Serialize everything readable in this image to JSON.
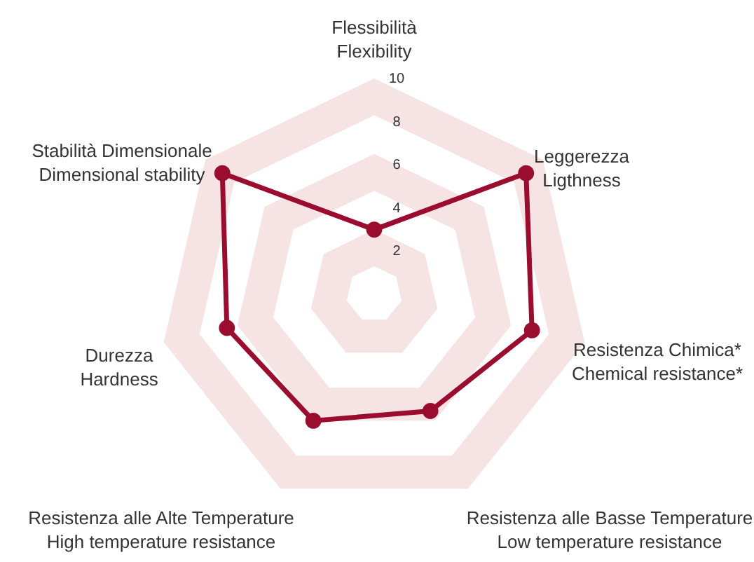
{
  "chart_data": {
    "type": "radar",
    "categories": [
      "Flessibilità\nFlexibility",
      "Leggerezza\nLigthness",
      "Resistenza Chimica*\nChemical resistance*",
      "Resistenza alle Basse Temperature\nLow temperature resistance",
      "Resistenza alle Alte Temperature\nHigh temperature resistance",
      "Durezza\nHardness",
      "Stabilità Dimensionale\nDimensional stability"
    ],
    "series": [
      {
        "color": "#9b0d2e",
        "values": [
          3,
          9,
          7.5,
          6,
          6.5,
          7,
          9
        ]
      }
    ],
    "ylim": [
      0,
      10
    ],
    "yticks": [
      2,
      4,
      6,
      8,
      10
    ],
    "marker": "circle",
    "line_style": "solid",
    "grid": true
  }
}
